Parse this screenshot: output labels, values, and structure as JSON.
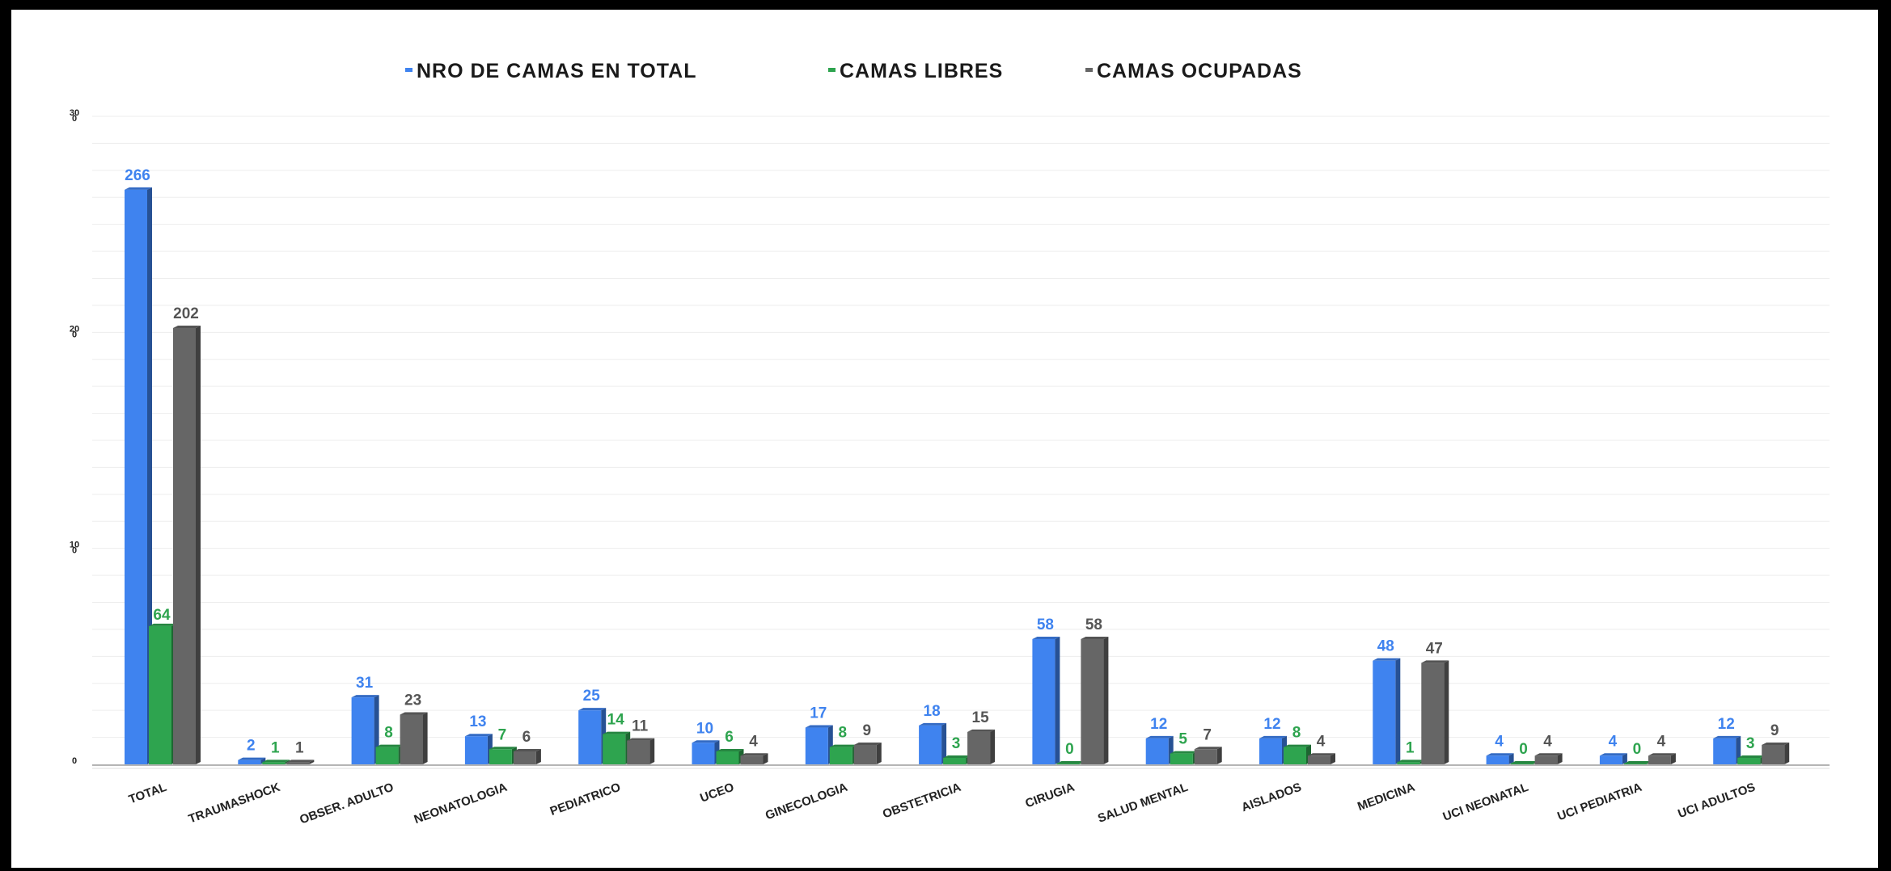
{
  "chart_data": {
    "type": "bar",
    "categories": [
      "TOTAL",
      "TRAUMASHOCK",
      "OBSER. ADULTO",
      "NEONATOLOGIA",
      "PEDIATRICO",
      "UCEO",
      "GINECOLOGIA",
      "OBSTETRICIA",
      "CIRUGIA",
      "SALUD MENTAL",
      "AISLADOS",
      "MEDICINA",
      "UCI NEONATAL",
      "UCI PEDIATRIA",
      "UCI ADULTOS"
    ],
    "series": [
      {
        "name": "NRO DE CAMAS EN TOTAL",
        "color": "#3f83ef",
        "label_color": "#3f83ef",
        "values": [
          266,
          2,
          31,
          13,
          25,
          10,
          17,
          18,
          58,
          12,
          12,
          48,
          4,
          4,
          12
        ]
      },
      {
        "name": "CAMAS LIBRES",
        "color": "#2ea44f",
        "label_color": "#2ea44f",
        "values": [
          64,
          1,
          8,
          7,
          14,
          6,
          8,
          3,
          0,
          5,
          8,
          1,
          0,
          0,
          3
        ]
      },
      {
        "name": "CAMAS OCUPADAS",
        "color": "#666666",
        "label_color": "#555555",
        "values": [
          202,
          1,
          23,
          6,
          11,
          4,
          9,
          15,
          58,
          7,
          4,
          47,
          4,
          4,
          9
        ]
      }
    ],
    "y_ticks": [
      {
        "value": 0,
        "label": "0"
      },
      {
        "value": 100,
        "label": "10\n0"
      },
      {
        "value": 200,
        "label": "20\n0"
      },
      {
        "value": 300,
        "label": "30\n0"
      }
    ],
    "ylim": [
      0,
      300
    ],
    "grid": true,
    "legend_position": "top",
    "title": "",
    "xlabel": "",
    "ylabel": ""
  }
}
